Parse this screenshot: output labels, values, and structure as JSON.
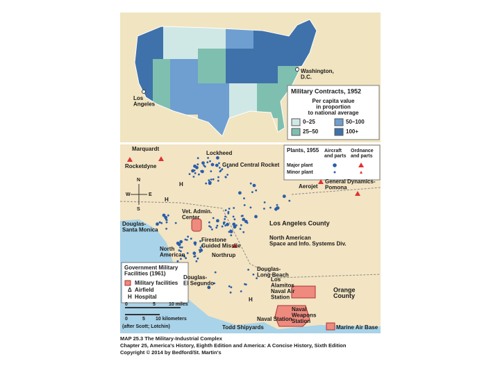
{
  "us_map": {
    "washington": [
      "Washington,",
      "D.C."
    ],
    "los_angeles": [
      "Los",
      "Angeles"
    ],
    "legend": {
      "title": "Military Contracts, 1952",
      "subtitle": [
        "Per capita value",
        "in proportion",
        "to national average"
      ],
      "items": [
        {
          "label": "0–25",
          "color": "#cfe8e6"
        },
        {
          "label": "50–100",
          "color": "#6e9fd0"
        },
        {
          "label": "25–50",
          "color": "#7fbfb0"
        },
        {
          "label": "100+",
          "color": "#3f72aa"
        }
      ]
    }
  },
  "la_map": {
    "labels": {
      "marquardt": [
        "Marquardt"
      ],
      "rocketdyne": [
        "Rocketdyne"
      ],
      "lockheed": [
        "Lockheed"
      ],
      "grand_central": [
        "Grand Central Rocket"
      ],
      "aerojet": [
        "Aerojet"
      ],
      "general_dynamics": [
        "General Dynamics-",
        "Pomona"
      ],
      "vet_admin": [
        "Vet. Admin.",
        "Center"
      ],
      "douglas_sm": [
        "Douglas-",
        "Santa Monica"
      ],
      "la_county": [
        "Los Angeles County"
      ],
      "firestone": [
        "Firestone",
        "Guided Missile"
      ],
      "na_space": [
        "North American",
        "Space and Info. Systems Div."
      ],
      "north_american": [
        "North",
        "American"
      ],
      "northrup": [
        "Northrup"
      ],
      "douglas_es": [
        "Douglas-",
        "El Segundo"
      ],
      "douglas_lb": [
        "Douglas-",
        "Long Beach"
      ],
      "los_alamitos": [
        "Los",
        "Alamitos",
        "Naval Air",
        "Station"
      ],
      "orange": [
        "Orange",
        "County"
      ],
      "naval_station": [
        "Naval Station"
      ],
      "todd": [
        "Todd Shipyards"
      ],
      "naval_weapons": [
        "Naval",
        "Weapons",
        "Station"
      ],
      "marine": [
        "Marine Air Base"
      ]
    },
    "compass": [
      "N",
      "E",
      "W",
      "S"
    ],
    "plants_legend": {
      "title": "Plants, 1955",
      "aircraft": [
        "Aircraft",
        "and parts"
      ],
      "ordnance": [
        "Ordnance",
        "and parts"
      ],
      "major": "Major plant",
      "minor": "Minor plant"
    },
    "facilities_legend": {
      "title": [
        "Government Military",
        "Facilities (1961)"
      ],
      "items": [
        "Military facilities",
        "Airfield",
        "Hospital"
      ]
    },
    "scale": {
      "miles": [
        "0",
        "5",
        "10 miles"
      ],
      "km": [
        "0",
        "5",
        "10 kilometers"
      ]
    },
    "source": "(after Scott; Lotchin)"
  },
  "caption": [
    "MAP 25.3 The Military-Industrial Complex",
    "Chapter 25, America's History, Eighth Edition and America: A Concise History, Sixth Edition",
    "Copyright © 2014 by Bedford/St. Martin's"
  ]
}
